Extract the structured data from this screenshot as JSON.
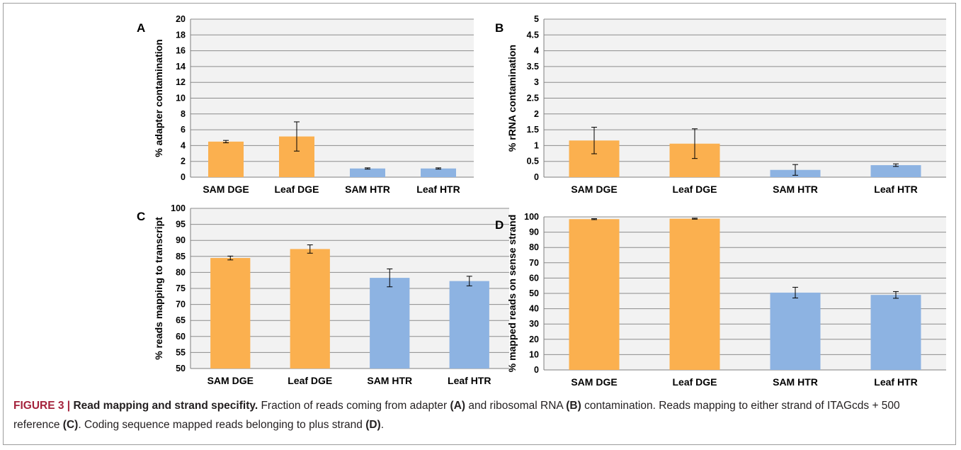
{
  "chart_data": [
    {
      "panel": "A",
      "type": "bar",
      "categories": [
        "SAM DGE",
        "Leaf DGE",
        "SAM HTR",
        "Leaf HTR"
      ],
      "values": [
        4.5,
        5.15,
        1.1,
        1.1
      ],
      "errors": [
        0.15,
        1.85,
        0.08,
        0.08
      ],
      "colors": [
        "#fbb04f",
        "#fbb04f",
        "#8db3e2",
        "#8db3e2"
      ],
      "ylabel": "% adapter contamination",
      "ylim": [
        0,
        20
      ],
      "yticks": [
        "0",
        "2",
        "4",
        "6",
        "8",
        "10",
        "12",
        "14",
        "16",
        "18",
        "20"
      ],
      "grid": true
    },
    {
      "panel": "B",
      "type": "bar",
      "categories": [
        "SAM DGE",
        "Leaf DGE",
        "SAM HTR",
        "Leaf HTR"
      ],
      "values": [
        1.16,
        1.06,
        0.23,
        0.38
      ],
      "errors": [
        0.42,
        0.47,
        0.17,
        0.04
      ],
      "colors": [
        "#fbb04f",
        "#fbb04f",
        "#8db3e2",
        "#8db3e2"
      ],
      "ylabel": "% rRNA contamination",
      "ylim": [
        0,
        5
      ],
      "yticks": [
        "0",
        "0.5",
        "1",
        "1.5",
        "2",
        "2.5",
        "3",
        "3.5",
        "4",
        "4.5",
        "5"
      ],
      "grid": true
    },
    {
      "panel": "C",
      "type": "bar",
      "categories": [
        "SAM DGE",
        "Leaf DGE",
        "SAM HTR",
        "Leaf HTR"
      ],
      "values": [
        84.5,
        87.3,
        78.3,
        77.3
      ],
      "errors": [
        0.6,
        1.3,
        2.8,
        1.5
      ],
      "colors": [
        "#fbb04f",
        "#fbb04f",
        "#8db3e2",
        "#8db3e2"
      ],
      "ylabel": "% reads mapping to transcript",
      "ylim": [
        50,
        100
      ],
      "yticks": [
        "50",
        "55",
        "60",
        "65",
        "70",
        "75",
        "80",
        "85",
        "90",
        "95",
        "100"
      ],
      "grid": true
    },
    {
      "panel": "D",
      "type": "bar",
      "categories": [
        "SAM DGE",
        "Leaf DGE",
        "SAM HTR",
        "Leaf HTR"
      ],
      "values": [
        98.5,
        98.8,
        50.5,
        49.0
      ],
      "errors": [
        0.3,
        0.3,
        3.5,
        2.2
      ],
      "colors": [
        "#fbb04f",
        "#fbb04f",
        "#8db3e2",
        "#8db3e2"
      ],
      "ylabel": "% mapped reads on sense strand",
      "ylim": [
        0,
        100
      ],
      "yticks": [
        "0",
        "10",
        "20",
        "30",
        "40",
        "50",
        "60",
        "70",
        "80",
        "90",
        "100"
      ],
      "grid": true
    }
  ],
  "caption": {
    "label": "FIGURE 3 |",
    "title": "Read mapping and strand specifity.",
    "text_1": "Fraction of reads coming from adapter",
    "ref_a": "(A)",
    "text_2": "and ribosomal RNA",
    "ref_b": "(B)",
    "text_3": "contamination. Reads mapping to either strand of ITAGcds + 500 reference",
    "ref_c": "(C)",
    "text_4": ". Coding sequence mapped reads belonging to plus strand",
    "ref_d": "(D)",
    "text_5": "."
  }
}
